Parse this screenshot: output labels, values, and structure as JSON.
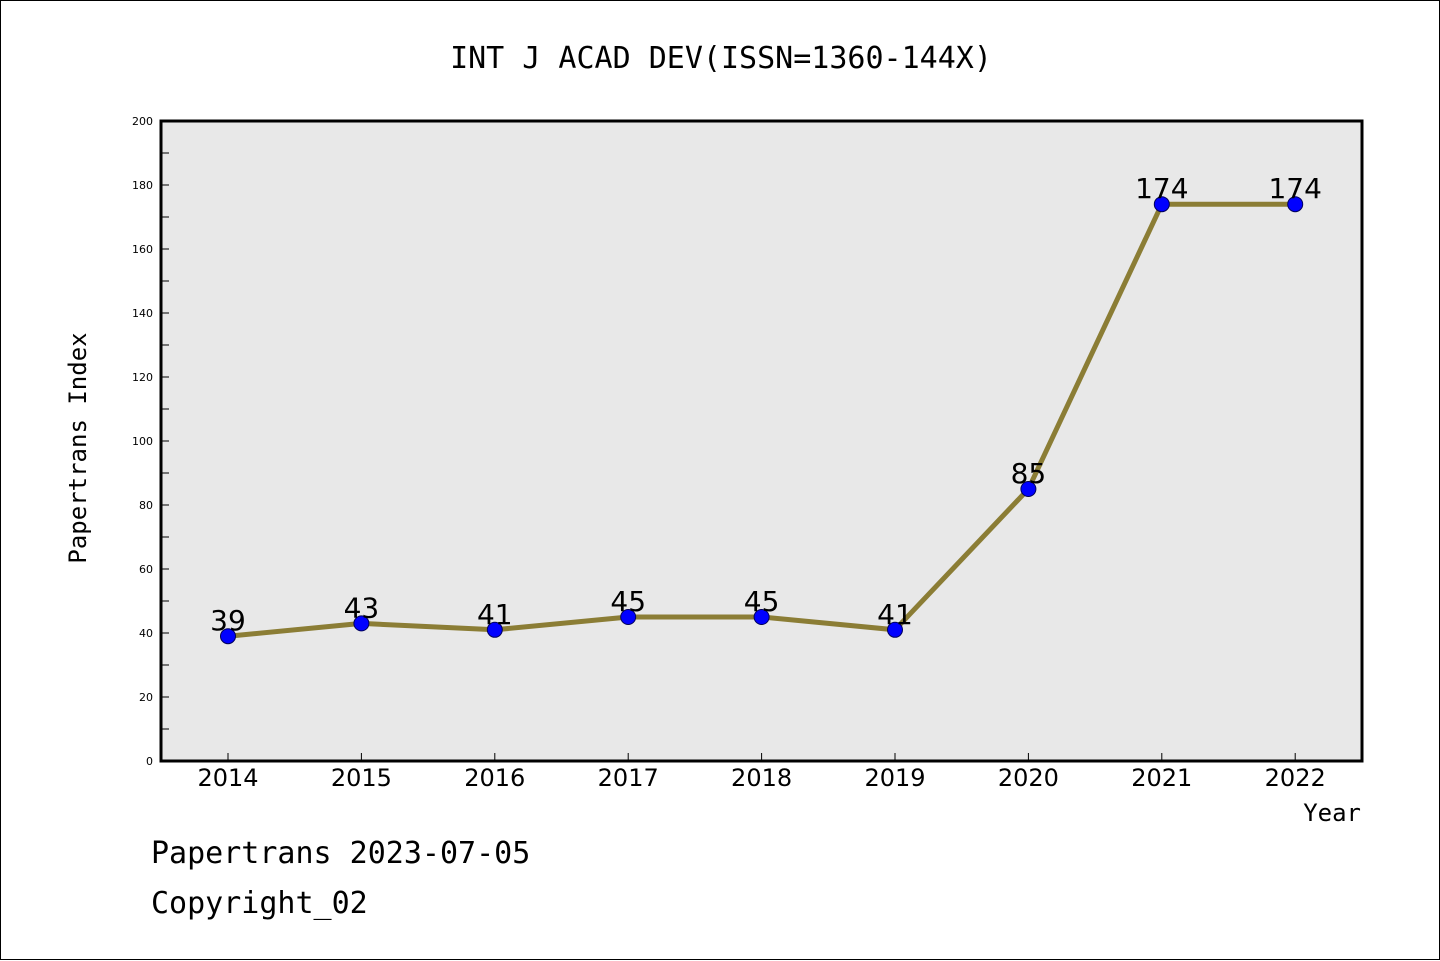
{
  "chart_data": {
    "type": "line",
    "title": "INT J ACAD DEV(ISSN=1360-144X)",
    "xlabel": "Year",
    "ylabel": "Papertrans Index",
    "categories": [
      "2014",
      "2015",
      "2016",
      "2017",
      "2018",
      "2019",
      "2020",
      "2021",
      "2022"
    ],
    "values": [
      39,
      43,
      41,
      45,
      45,
      41,
      85,
      174,
      174
    ],
    "data_labels": [
      "39",
      "43",
      "41",
      "45",
      "45",
      "41",
      "85",
      "174",
      "174"
    ],
    "ylim": [
      0,
      200
    ],
    "y_ticks": [
      "0",
      "20",
      "40",
      "60",
      "80",
      "100",
      "120",
      "140",
      "160",
      "180",
      "200"
    ],
    "grid": false,
    "legend": "none",
    "colors": {
      "line": "#8b7d35",
      "marker": "#0000ff",
      "plot_background": "#e8e8e8",
      "axes": "#000000"
    }
  },
  "footer": {
    "line1": "Papertrans 2023-07-05",
    "line2": "Copyright_02"
  }
}
